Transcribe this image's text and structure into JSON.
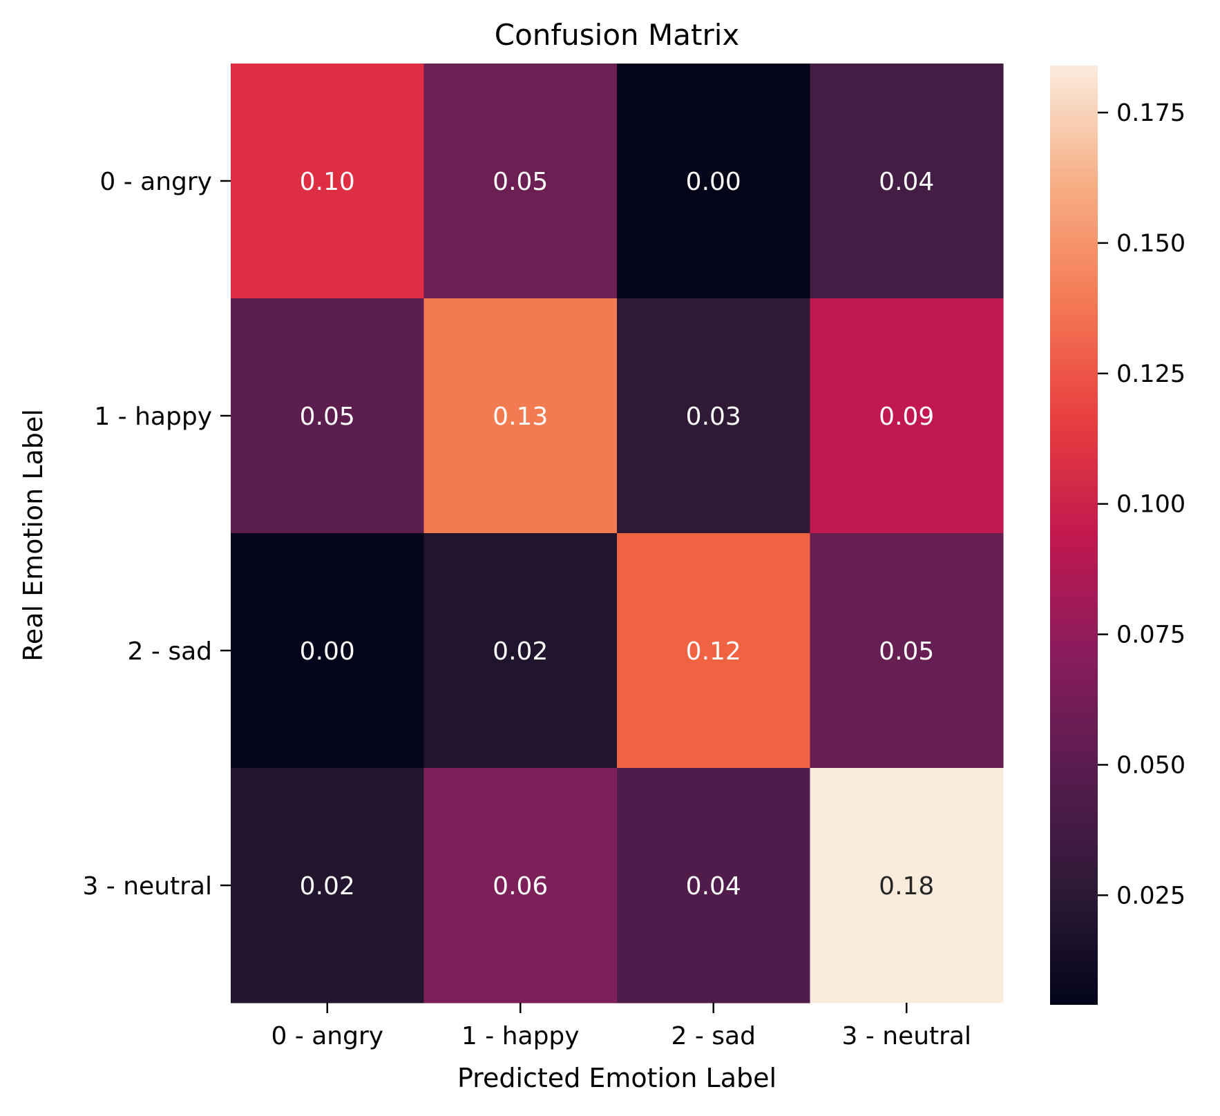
{
  "chart_data": {
    "type": "heatmap",
    "title": "Confusion Matrix",
    "xlabel": "Predicted Emotion Label",
    "ylabel": "Real Emotion Label",
    "x_categories": [
      "0 - angry",
      "1 - happy",
      "2 - sad",
      "3 - neutral"
    ],
    "y_categories": [
      "0 - angry",
      "1 - happy",
      "2 - sad",
      "3 - neutral"
    ],
    "values": [
      [
        0.1,
        0.05,
        0.0,
        0.04
      ],
      [
        0.05,
        0.13,
        0.03,
        0.09
      ],
      [
        0.0,
        0.02,
        0.12,
        0.05
      ],
      [
        0.02,
        0.06,
        0.04,
        0.18
      ]
    ],
    "cell_labels": [
      [
        "0.10",
        "0.05",
        "0.00",
        "0.04"
      ],
      [
        "0.05",
        "0.13",
        "0.03",
        "0.09"
      ],
      [
        "0.00",
        "0.02",
        "0.12",
        "0.05"
      ],
      [
        "0.02",
        "0.06",
        "0.04",
        "0.18"
      ]
    ],
    "cell_colors": [
      [
        "#de2e44",
        "#6b1f53",
        "#050519",
        "#431d43"
      ],
      [
        "#5c1e4f",
        "#f37b52",
        "#2f1a35",
        "#c1184f"
      ],
      [
        "#04051a",
        "#20152d",
        "#ef6242",
        "#661f53"
      ],
      [
        "#23152e",
        "#7d1f59",
        "#501c4b",
        "#faebdd"
      ]
    ],
    "cell_text_colors": [
      [
        "#ffffff",
        "#ffffff",
        "#ffffff",
        "#ffffff"
      ],
      [
        "#ffffff",
        "#ffffff",
        "#ffffff",
        "#ffffff"
      ],
      [
        "#ffffff",
        "#ffffff",
        "#ffffff",
        "#ffffff"
      ],
      [
        "#ffffff",
        "#ffffff",
        "#ffffff",
        "#262626"
      ]
    ],
    "colorbar": {
      "colormap": "rocket",
      "range": [
        0.004,
        0.184
      ],
      "ticks": [
        0.025,
        0.05,
        0.075,
        0.1,
        0.125,
        0.15,
        0.175
      ],
      "tick_labels": [
        "0.025",
        "0.050",
        "0.075",
        "0.100",
        "0.125",
        "0.150",
        "0.175"
      ],
      "gradient_stops": [
        "#03051a",
        "#2e1a36",
        "#581c4e",
        "#891c5c",
        "#c1184f",
        "#e83f3f",
        "#f47a55",
        "#f6ae85",
        "#faebdd"
      ]
    },
    "grid": false
  }
}
